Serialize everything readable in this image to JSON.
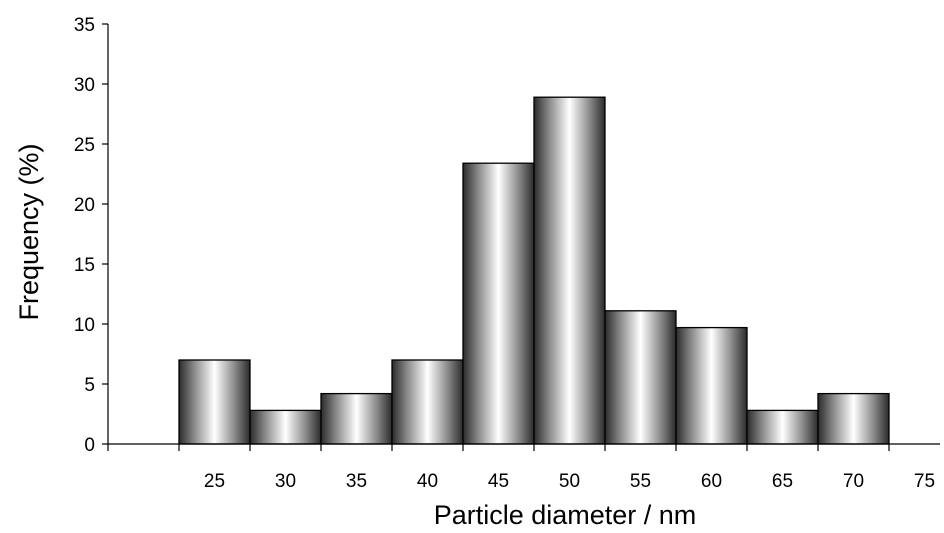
{
  "chart_data": {
    "type": "bar",
    "title": "",
    "xlabel": "Particle diameter / nm",
    "ylabel": "Frequency (%)",
    "ylim": [
      0,
      35
    ],
    "y_ticks": [
      "0",
      "5",
      "10",
      "15",
      "20",
      "25",
      "30",
      "35"
    ],
    "x_tick_labels": [
      "25",
      "30",
      "35",
      "40",
      "45",
      "50",
      "55",
      "60",
      "65",
      "70",
      "75"
    ],
    "categories": [
      "25",
      "30",
      "35",
      "40",
      "45",
      "50",
      "55",
      "60",
      "65",
      "70"
    ],
    "values": [
      7,
      2.8,
      4.2,
      7,
      23.4,
      28.9,
      11.1,
      9.7,
      2.8,
      4.2
    ],
    "grid": false,
    "legend": "none",
    "bar_fill": "cylindrical gray gradient"
  }
}
